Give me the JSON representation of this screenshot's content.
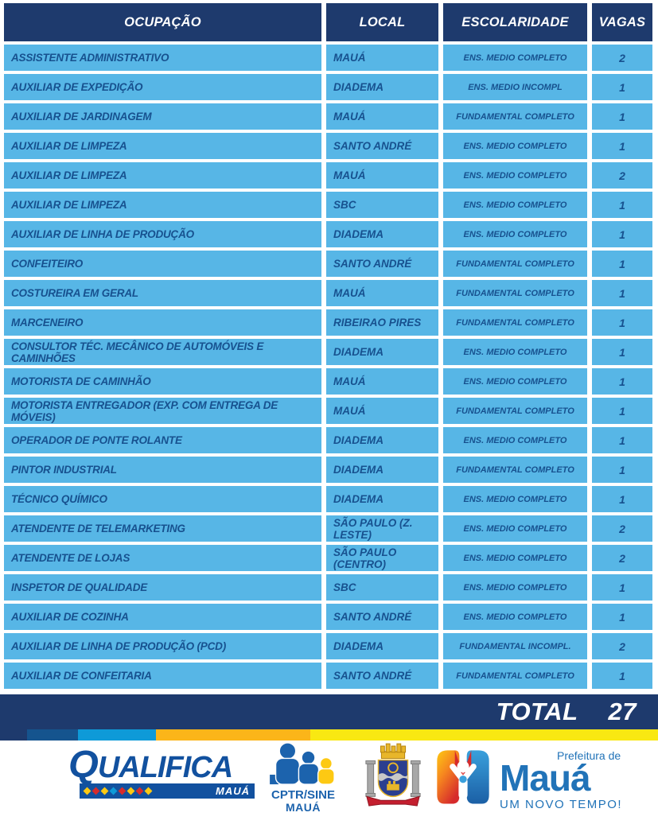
{
  "table": {
    "headers": [
      "OCUPAÇÃO",
      "LOCAL",
      "ESCOLARIDADE",
      "VAGAS"
    ],
    "rows": [
      {
        "ocupacao": "ASSISTENTE ADMINISTRATIVO",
        "local": "MAUÁ",
        "escolaridade": "ENS. MEDIO COMPLETO",
        "vagas": "2"
      },
      {
        "ocupacao": "AUXILIAR DE EXPEDIÇÃO",
        "local": "DIADEMA",
        "escolaridade": "ENS. MEDIO INCOMPL",
        "vagas": "1"
      },
      {
        "ocupacao": "AUXILIAR DE JARDINAGEM",
        "local": "MAUÁ",
        "escolaridade": "FUNDAMENTAL COMPLETO",
        "vagas": "1"
      },
      {
        "ocupacao": "AUXILIAR DE LIMPEZA",
        "local": "SANTO ANDRÉ",
        "escolaridade": "ENS. MEDIO COMPLETO",
        "vagas": "1"
      },
      {
        "ocupacao": "AUXILIAR DE LIMPEZA",
        "local": "MAUÁ",
        "escolaridade": "ENS. MEDIO COMPLETO",
        "vagas": "2"
      },
      {
        "ocupacao": "AUXILIAR DE LIMPEZA",
        "local": "SBC",
        "escolaridade": "ENS. MEDIO COMPLETO",
        "vagas": "1"
      },
      {
        "ocupacao": "AUXILIAR DE LINHA DE PRODUÇÃO",
        "local": "DIADEMA",
        "escolaridade": "ENS. MEDIO COMPLETO",
        "vagas": "1"
      },
      {
        "ocupacao": "CONFEITEIRO",
        "local": "SANTO ANDRÉ",
        "escolaridade": "FUNDAMENTAL COMPLETO",
        "vagas": "1"
      },
      {
        "ocupacao": "COSTUREIRA EM GERAL",
        "local": "MAUÁ",
        "escolaridade": "FUNDAMENTAL COMPLETO",
        "vagas": "1"
      },
      {
        "ocupacao": "MARCENEIRO",
        "local": "RIBEIRAO PIRES",
        "escolaridade": "FUNDAMENTAL COMPLETO",
        "vagas": "1"
      },
      {
        "ocupacao": "CONSULTOR TÉC. MECÂNICO DE AUTOMÓVEIS E CAMINHÕES",
        "local": "DIADEMA",
        "escolaridade": "ENS. MEDIO COMPLETO",
        "vagas": "1"
      },
      {
        "ocupacao": "MOTORISTA DE CAMINHÃO",
        "local": "MAUÁ",
        "escolaridade": "ENS. MEDIO COMPLETO",
        "vagas": "1"
      },
      {
        "ocupacao": "MOTORISTA ENTREGADOR (EXP. COM ENTREGA DE  MÓVEIS)",
        "local": "MAUÁ",
        "escolaridade": "FUNDAMENTAL COMPLETO",
        "vagas": "1"
      },
      {
        "ocupacao": "OPERADOR DE PONTE ROLANTE",
        "local": "DIADEMA",
        "escolaridade": "ENS. MEDIO COMPLETO",
        "vagas": "1"
      },
      {
        "ocupacao": "PINTOR INDUSTRIAL",
        "local": "DIADEMA",
        "escolaridade": "FUNDAMENTAL COMPLETO",
        "vagas": "1"
      },
      {
        "ocupacao": "TÉCNICO QUÍMICO",
        "local": "DIADEMA",
        "escolaridade": "ENS. MEDIO COMPLETO",
        "vagas": "1"
      },
      {
        "ocupacao": "ATENDENTE DE TELEMARKETING",
        "local": "SÃO PAULO (Z. LESTE)",
        "escolaridade": "ENS. MEDIO COMPLETO",
        "vagas": "2"
      },
      {
        "ocupacao": "ATENDENTE DE LOJAS",
        "local": "SÃO PAULO (CENTRO)",
        "escolaridade": "ENS. MEDIO COMPLETO",
        "vagas": "2"
      },
      {
        "ocupacao": "INSPETOR DE QUALIDADE",
        "local": "SBC",
        "escolaridade": "ENS. MEDIO COMPLETO",
        "vagas": "1"
      },
      {
        "ocupacao": "AUXILIAR DE COZINHA",
        "local": "SANTO ANDRÉ",
        "escolaridade": "ENS. MEDIO COMPLETO",
        "vagas": "1"
      },
      {
        "ocupacao": "AUXILIAR DE LINHA DE PRODUÇÃO (PCD)",
        "local": "DIADEMA",
        "escolaridade": "FUNDAMENTAL INCOMPL.",
        "vagas": "2"
      },
      {
        "ocupacao": "AUXILIAR DE CONFEITARIA",
        "local": "SANTO ANDRÉ",
        "escolaridade": "FUNDAMENTAL COMPLETO",
        "vagas": "1"
      }
    ],
    "total_label": "TOTAL",
    "total_value": "27"
  },
  "footer": {
    "qualifica": {
      "title": "QUALIFICA",
      "subtitle": "MAUÁ"
    },
    "cptr": {
      "line1": "CPTR/SINE",
      "line2": "MAUÁ"
    },
    "prefeitura": {
      "top": "Prefeitura de",
      "name": "Mauá",
      "slogan": "UM NOVO TEMPO!"
    }
  },
  "colors": {
    "header_navy": "#1e3a6d",
    "row_blue": "#57b6e6",
    "row_text_blue": "#17518f",
    "stripe_blue": "#15548e",
    "stripe_cyan": "#0e9ad8",
    "stripe_orange": "#fbb519",
    "stripe_yellow": "#f9e812",
    "brand_blue": "#12519f",
    "brand_light_blue": "#2173b8",
    "brand_yellow": "#fdc913",
    "brand_red": "#d62b2c"
  }
}
